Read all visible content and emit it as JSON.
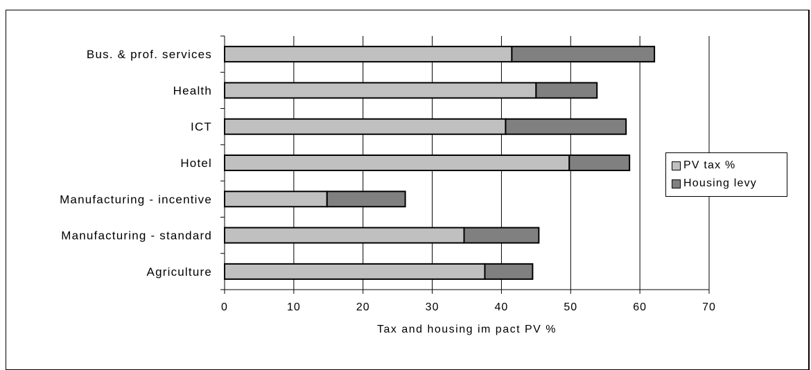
{
  "chart_data": {
    "type": "bar",
    "orientation": "horizontal",
    "stacked": true,
    "categories": [
      "Bus. & prof. services",
      "Health",
      "ICT",
      "Hotel",
      "Manufacturing - incentive",
      "Manufacturing - standard",
      "Agriculture"
    ],
    "series": [
      {
        "name": "PV tax %",
        "color": "#c0c0c0",
        "values": [
          41.5,
          45.0,
          40.6,
          49.8,
          14.8,
          34.6,
          37.6
        ]
      },
      {
        "name": "Housing levy",
        "color": "#808080",
        "values": [
          20.6,
          8.8,
          17.4,
          8.7,
          11.3,
          10.8,
          6.9
        ]
      }
    ],
    "xlabel": "Tax and housing im pact PV %",
    "xlim": [
      0,
      70
    ],
    "xticks": [
      "0",
      "10",
      "20",
      "30",
      "40",
      "50",
      "60",
      "70"
    ],
    "grid": "vertical",
    "legend": "right"
  }
}
